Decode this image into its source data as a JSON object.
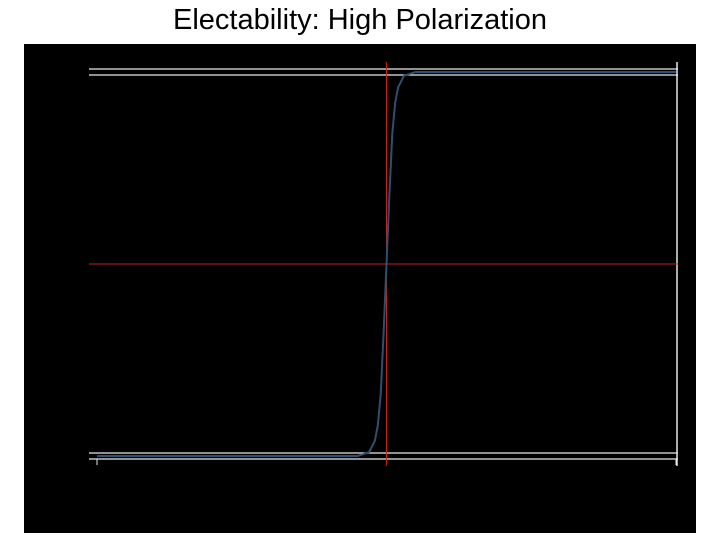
{
  "title": "Electability: High Polarization",
  "colors": {
    "background": "#000000",
    "curve": "#2f4f6f",
    "reference_lines": "#c8201c",
    "bounds": "#e8e8e8"
  },
  "chart_data": {
    "type": "line",
    "title": "Electability: High Polarization",
    "xlabel": "",
    "ylabel": "",
    "xlim": [
      0,
      1
    ],
    "ylim": [
      0,
      1
    ],
    "grid": false,
    "legend": "none",
    "bounds": [
      0,
      1
    ],
    "reference_lines": {
      "x": 0.5,
      "y": 0.5
    },
    "series": [
      {
        "x": [
          0.0,
          0.3,
          0.45,
          0.47,
          0.48,
          0.485,
          0.49,
          0.495,
          0.5,
          0.505,
          0.51,
          0.515,
          0.52,
          0.53,
          0.55,
          0.7,
          1.0
        ],
        "values": [
          0.0,
          0.0,
          0.0,
          0.01,
          0.04,
          0.08,
          0.16,
          0.32,
          0.5,
          0.68,
          0.84,
          0.92,
          0.96,
          0.99,
          1.0,
          1.0,
          1.0
        ]
      }
    ]
  }
}
